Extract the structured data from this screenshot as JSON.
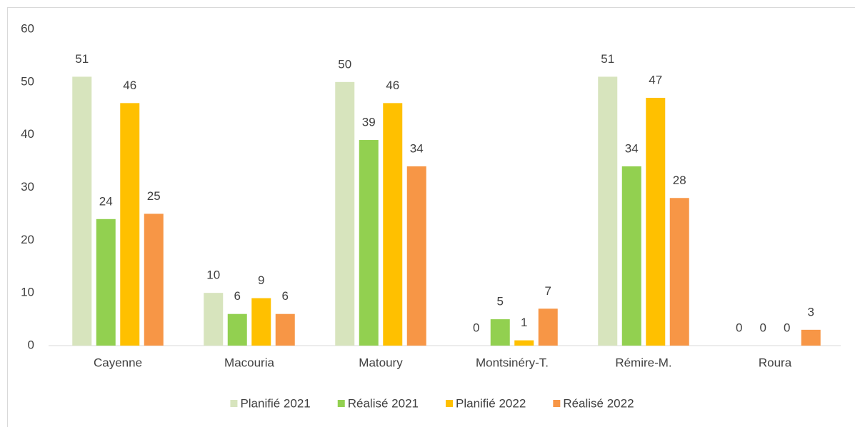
{
  "chart_data": {
    "type": "bar",
    "categories": [
      "Cayenne",
      "Macouria",
      "Matoury",
      "Montsinéry-T.",
      "Rémire-M.",
      "Roura"
    ],
    "series": [
      {
        "name": "Planifié 2021",
        "color": "#d7e4bd",
        "values": [
          51,
          10,
          50,
          0,
          51,
          0
        ]
      },
      {
        "name": "Réalisé 2021",
        "color": "#92d050",
        "values": [
          24,
          6,
          39,
          5,
          34,
          0
        ]
      },
      {
        "name": "Planifié 2022",
        "color": "#ffc000",
        "values": [
          46,
          9,
          46,
          1,
          47,
          0
        ]
      },
      {
        "name": "Réalisé 2022",
        "color": "#f79646",
        "values": [
          25,
          6,
          34,
          7,
          28,
          3
        ]
      }
    ],
    "ylim": [
      0,
      60
    ],
    "yticks": [
      0,
      10,
      20,
      30,
      40,
      50,
      60
    ],
    "grid": false,
    "legend": "bottom"
  }
}
